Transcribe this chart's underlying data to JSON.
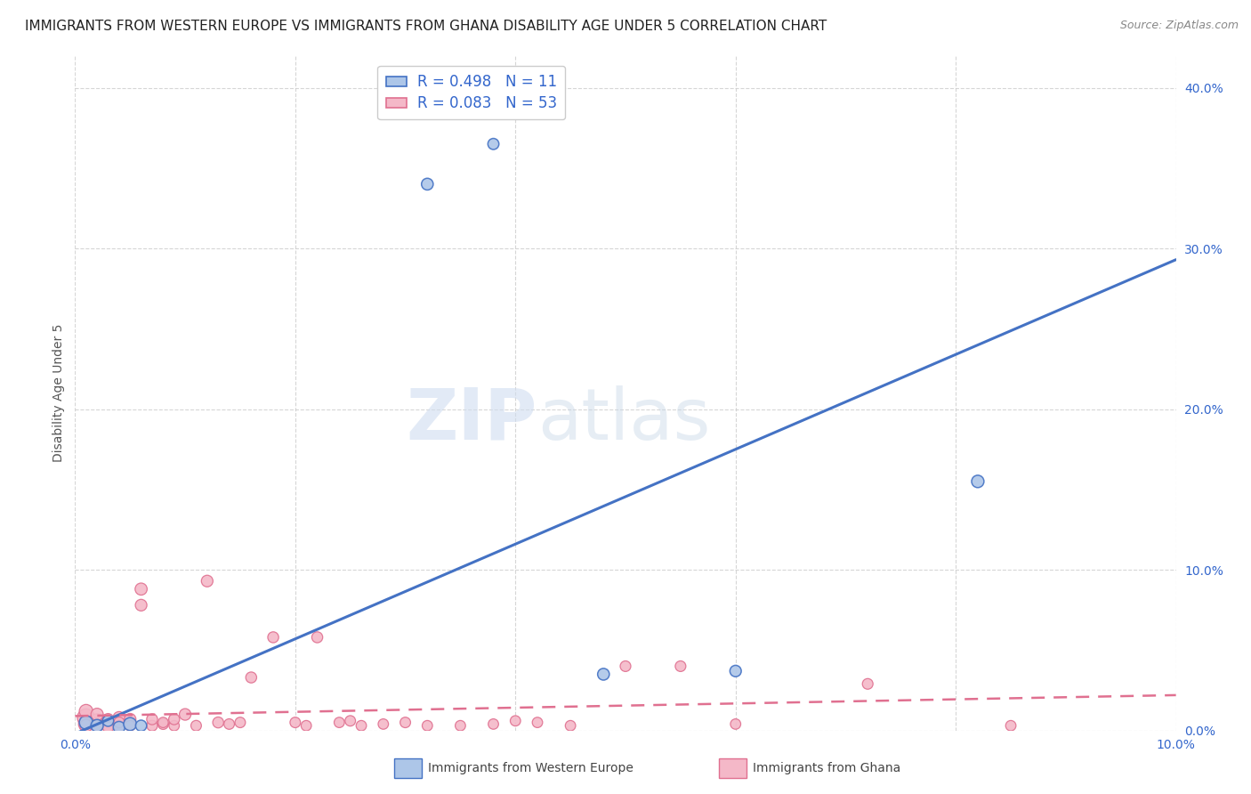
{
  "title": "IMMIGRANTS FROM WESTERN EUROPE VS IMMIGRANTS FROM GHANA DISABILITY AGE UNDER 5 CORRELATION CHART",
  "source": "Source: ZipAtlas.com",
  "ylabel": "Disability Age Under 5",
  "watermark_part1": "ZIP",
  "watermark_part2": "atlas",
  "blue_label": "Immigrants from Western Europe",
  "pink_label": "Immigrants from Ghana",
  "blue_R": 0.498,
  "blue_N": 11,
  "pink_R": 0.083,
  "pink_N": 53,
  "blue_color": "#adc6e8",
  "blue_line_color": "#4472c4",
  "pink_color": "#f4b8c8",
  "pink_line_color": "#e07090",
  "xlim": [
    0.0,
    0.1
  ],
  "ylim": [
    0.0,
    0.42
  ],
  "xticks": [
    0.0,
    0.02,
    0.04,
    0.06,
    0.08,
    0.1
  ],
  "yticks": [
    0.0,
    0.1,
    0.2,
    0.3,
    0.4
  ],
  "blue_points_x": [
    0.001,
    0.002,
    0.003,
    0.004,
    0.005,
    0.006,
    0.032,
    0.038,
    0.048,
    0.06,
    0.082
  ],
  "blue_points_y": [
    0.005,
    0.003,
    0.006,
    0.002,
    0.004,
    0.003,
    0.34,
    0.365,
    0.035,
    0.037,
    0.155
  ],
  "blue_sizes": [
    120,
    100,
    80,
    90,
    110,
    80,
    90,
    80,
    90,
    85,
    100
  ],
  "pink_points_x": [
    0.001,
    0.001,
    0.001,
    0.001,
    0.002,
    0.002,
    0.002,
    0.002,
    0.003,
    0.003,
    0.003,
    0.003,
    0.004,
    0.004,
    0.004,
    0.005,
    0.005,
    0.005,
    0.006,
    0.006,
    0.007,
    0.007,
    0.008,
    0.008,
    0.009,
    0.009,
    0.01,
    0.011,
    0.012,
    0.013,
    0.014,
    0.015,
    0.016,
    0.018,
    0.02,
    0.021,
    0.022,
    0.024,
    0.025,
    0.026,
    0.028,
    0.03,
    0.032,
    0.035,
    0.038,
    0.04,
    0.042,
    0.045,
    0.05,
    0.055,
    0.06,
    0.072,
    0.085
  ],
  "pink_points_y": [
    0.008,
    0.004,
    0.003,
    0.012,
    0.006,
    0.004,
    0.003,
    0.01,
    0.005,
    0.003,
    0.007,
    0.002,
    0.008,
    0.003,
    0.005,
    0.007,
    0.004,
    0.003,
    0.088,
    0.078,
    0.003,
    0.007,
    0.004,
    0.005,
    0.003,
    0.007,
    0.01,
    0.003,
    0.093,
    0.005,
    0.004,
    0.005,
    0.033,
    0.058,
    0.005,
    0.003,
    0.058,
    0.005,
    0.006,
    0.003,
    0.004,
    0.005,
    0.003,
    0.003,
    0.004,
    0.006,
    0.005,
    0.003,
    0.04,
    0.04,
    0.004,
    0.029,
    0.003
  ],
  "pink_sizes": [
    200,
    150,
    100,
    120,
    130,
    110,
    90,
    100,
    110,
    90,
    85,
    80,
    95,
    85,
    75,
    88,
    78,
    70,
    95,
    88,
    75,
    78,
    75,
    70,
    70,
    78,
    88,
    72,
    88,
    78,
    72,
    72,
    78,
    78,
    72,
    70,
    78,
    70,
    72,
    70,
    70,
    72,
    70,
    70,
    70,
    70,
    70,
    70,
    74,
    74,
    70,
    74,
    70
  ],
  "blue_trend_x": [
    0.0,
    0.1
  ],
  "blue_trend_y": [
    -0.002,
    0.293
  ],
  "pink_trend_x": [
    0.0,
    0.1
  ],
  "pink_trend_y": [
    0.009,
    0.022
  ],
  "title_fontsize": 11,
  "axis_fontsize": 10,
  "tick_fontsize": 10,
  "legend_fontsize": 11
}
